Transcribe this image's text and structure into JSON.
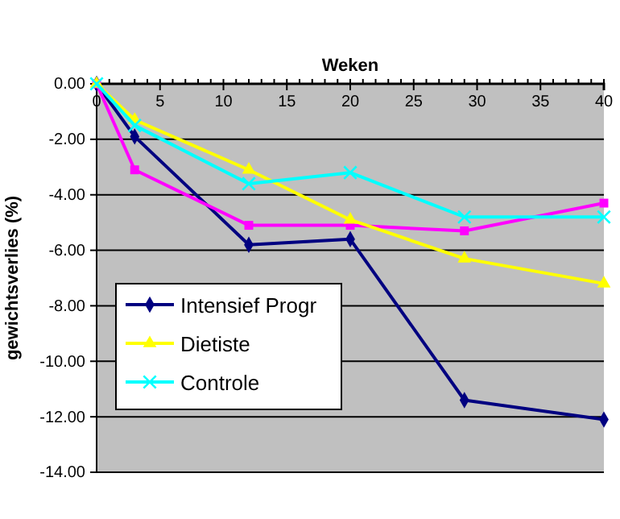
{
  "chart_data": {
    "type": "line",
    "xlabel": "Weken",
    "ylabel": "gewichtsverlies (%)",
    "x": [
      0,
      3,
      12,
      20,
      29,
      40
    ],
    "series": [
      {
        "name": "Intensief Progr",
        "color": "#000080",
        "marker": "diamond",
        "values": [
          0,
          -1.9,
          -5.8,
          -5.6,
          -11.4,
          -12.1
        ]
      },
      {
        "color": "#ff00ff",
        "marker": "square",
        "values": [
          0,
          -3.1,
          -5.1,
          -5.1,
          -5.3,
          -4.3
        ]
      },
      {
        "name": "Dietiste",
        "color": "#ffff00",
        "marker": "triangle",
        "values": [
          0,
          -1.3,
          -3.1,
          -4.9,
          -6.3,
          -7.2
        ]
      },
      {
        "name": "Controle",
        "color": "#00ffff",
        "marker": "cross",
        "values": [
          0,
          -1.5,
          -3.6,
          -3.2,
          -4.8,
          -4.8
        ]
      }
    ],
    "xlim": [
      0,
      40
    ],
    "xticks": [
      0,
      5,
      10,
      15,
      20,
      25,
      30,
      35,
      40
    ],
    "ylim": [
      -14,
      0
    ],
    "yticks": [
      {
        "value": 0,
        "label": "0.00"
      },
      {
        "value": -2,
        "label": "-2.00"
      },
      {
        "value": -4,
        "label": "-4.00"
      },
      {
        "value": -6,
        "label": "-6.00"
      },
      {
        "value": -8,
        "label": "-8.00"
      },
      {
        "value": -10,
        "label": "-10.00"
      },
      {
        "value": -12,
        "label": "-12.00"
      },
      {
        "value": -14,
        "label": "-14.00"
      }
    ],
    "grid": "y",
    "legend": "left",
    "line_style": "solid"
  }
}
